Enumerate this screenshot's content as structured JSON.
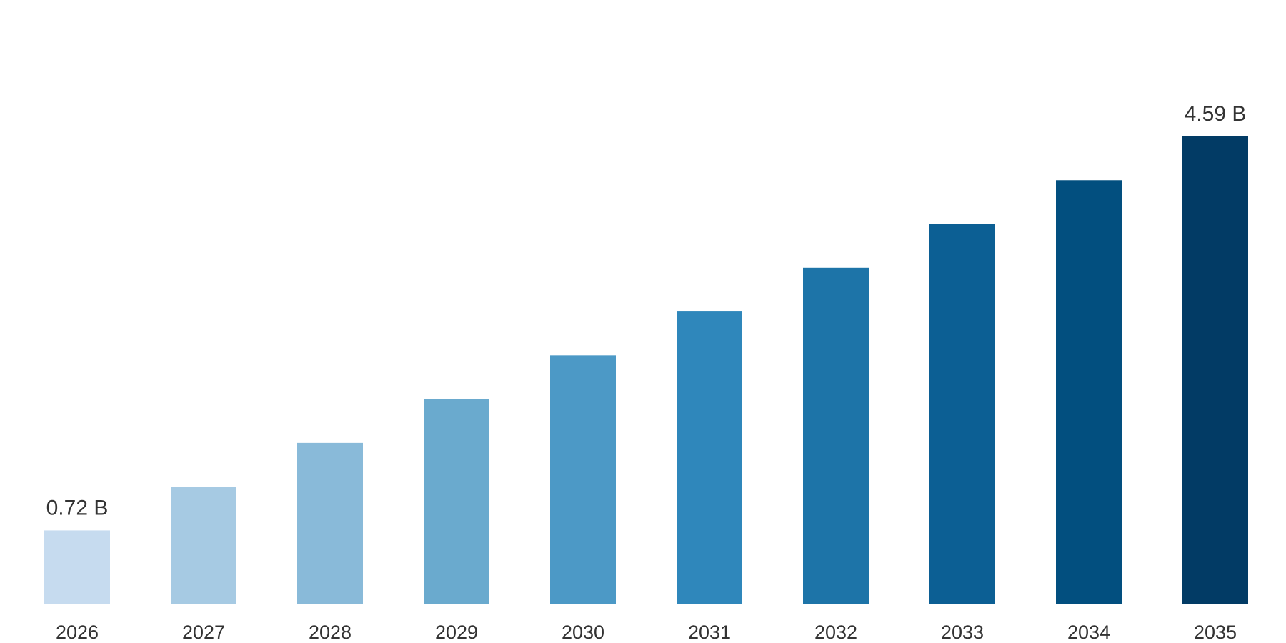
{
  "chart_data": {
    "type": "bar",
    "categories": [
      "2026",
      "2027",
      "2028",
      "2029",
      "2030",
      "2031",
      "2032",
      "2033",
      "2034",
      "2035"
    ],
    "values": [
      0.72,
      1.15,
      1.58,
      2.01,
      2.44,
      2.87,
      3.3,
      3.73,
      4.16,
      4.59
    ],
    "data_labels": [
      {
        "index": 0,
        "text": "0.72 B"
      },
      {
        "index": 9,
        "text": "4.59 B"
      }
    ],
    "unit": "B",
    "title": "",
    "xlabel": "",
    "ylabel": "",
    "ylim": [
      0,
      5.2
    ],
    "grid": false,
    "legend": "none",
    "colors": [
      "#c6dbef",
      "#a6cae3",
      "#89bad9",
      "#6aaace",
      "#4c99c6",
      "#2f87bb",
      "#1d74a8",
      "#0c5f94",
      "#024f7f",
      "#023b65"
    ]
  }
}
